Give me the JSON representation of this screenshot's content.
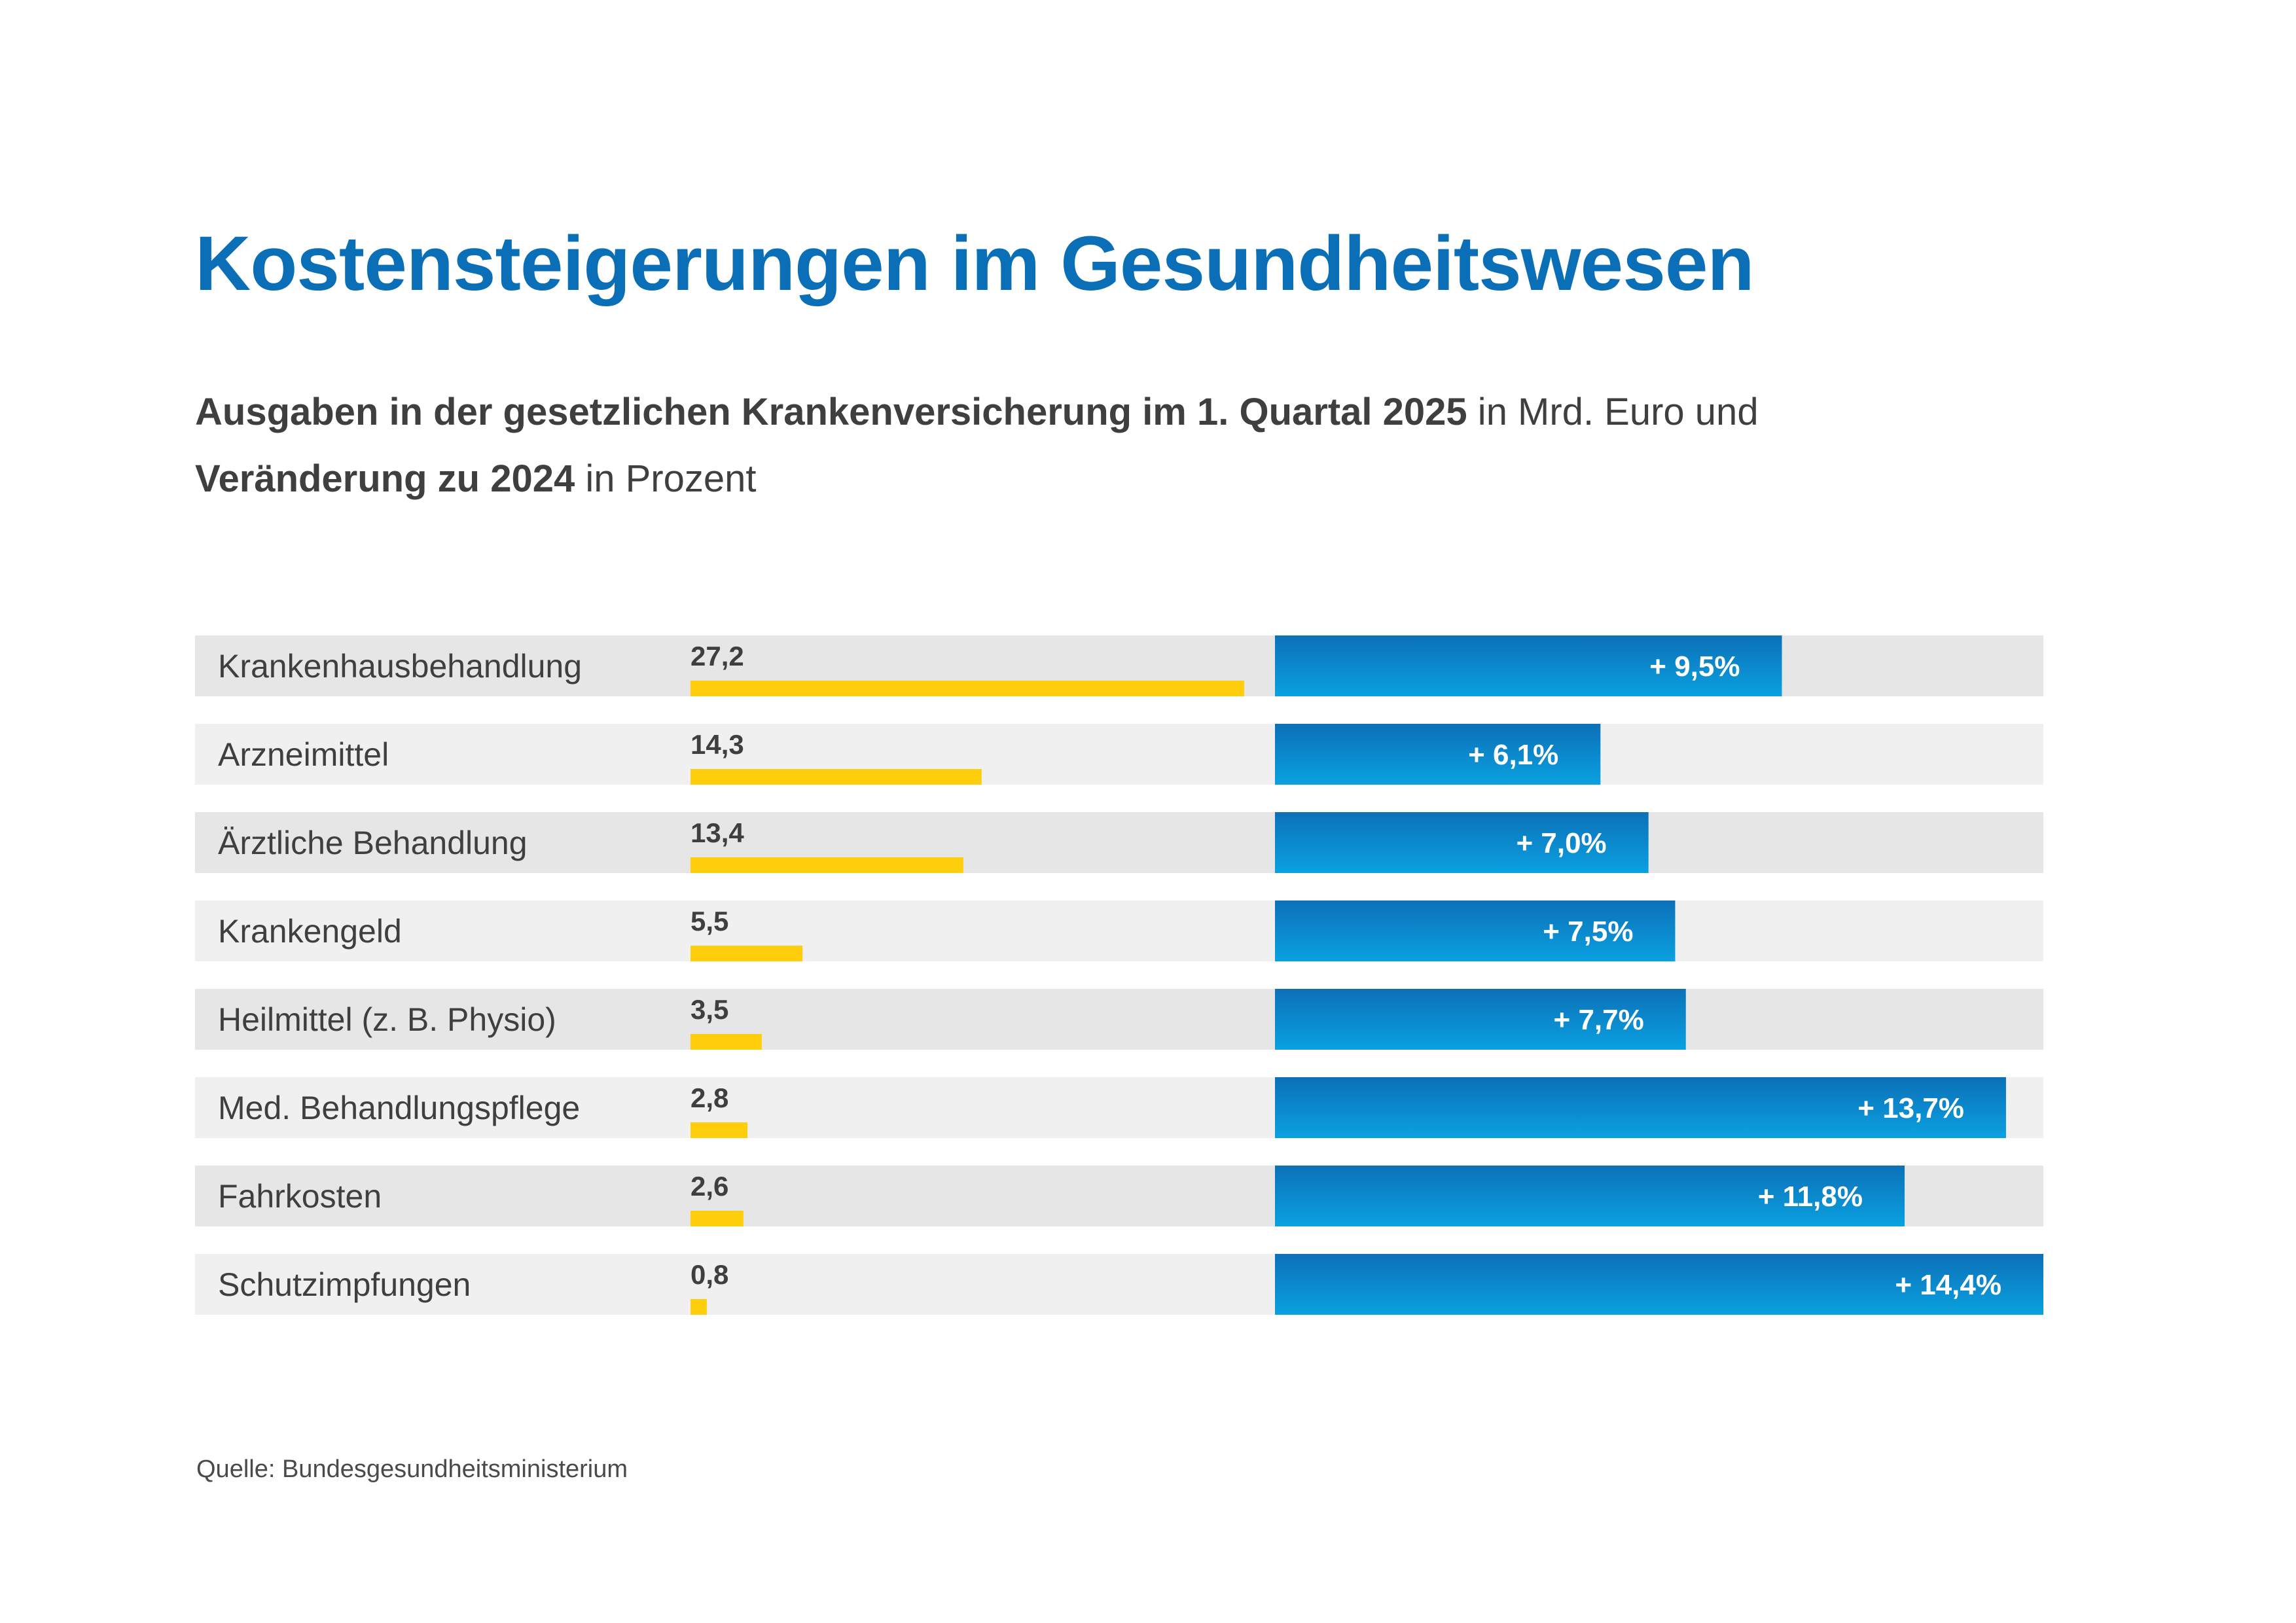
{
  "title": "Kostensteigerungen im Gesundheitswesen",
  "subtitle": {
    "line1_bold": "Ausgaben in der gesetzlichen Krankenversicherung im 1. Quartal 2025",
    "line1_regular": " in Mrd. Euro und",
    "line2_bold": "Veränderung zu 2024",
    "line2_regular": " in Prozent"
  },
  "source": "Quelle: Bundesgesundheitsministerium",
  "colors": {
    "title": "#0a6fb7",
    "text": "#3f3f3f",
    "row_bg_odd": "#e6e6e6",
    "row_bg_even": "#f0f0f0",
    "spending_bar": "#fecd0c",
    "change_bar_top": "#0c70b8",
    "change_bar_bottom": "#0aa1e0",
    "change_label": "#ffffff"
  },
  "chart_data": {
    "type": "bar",
    "orientation": "horizontal",
    "categories": [
      "Krankenhausbehandlung",
      "Arzneimittel",
      "Ärztliche Behandlung",
      "Krankengeld",
      "Heilmittel (z. B. Physio)",
      "Med. Behandlungspflege",
      "Fahrkosten",
      "Schutzimpfungen"
    ],
    "series": [
      {
        "values": [
          27.2,
          14.3,
          13.4,
          5.5,
          3.5,
          2.8,
          2.6,
          0.8
        ],
        "labels": [
          "27,2",
          "14,3",
          "13,4",
          "5,5",
          "3,5",
          "2,8",
          "2,6",
          "0,8"
        ]
      },
      {
        "values": [
          9.5,
          6.1,
          7.0,
          7.5,
          7.7,
          13.7,
          11.8,
          14.4
        ],
        "labels": [
          "+ 9,5%",
          "+ 6,1%",
          "+ 7,0%",
          "+ 7,5%",
          "+ 7,7%",
          "+ 13,7%",
          "+ 11,8%",
          "+ 14,4%"
        ]
      }
    ],
    "xlim_spending": [
      0,
      27.2
    ],
    "xlim_change": [
      0,
      14.4
    ],
    "grid": false,
    "legend": "none"
  }
}
